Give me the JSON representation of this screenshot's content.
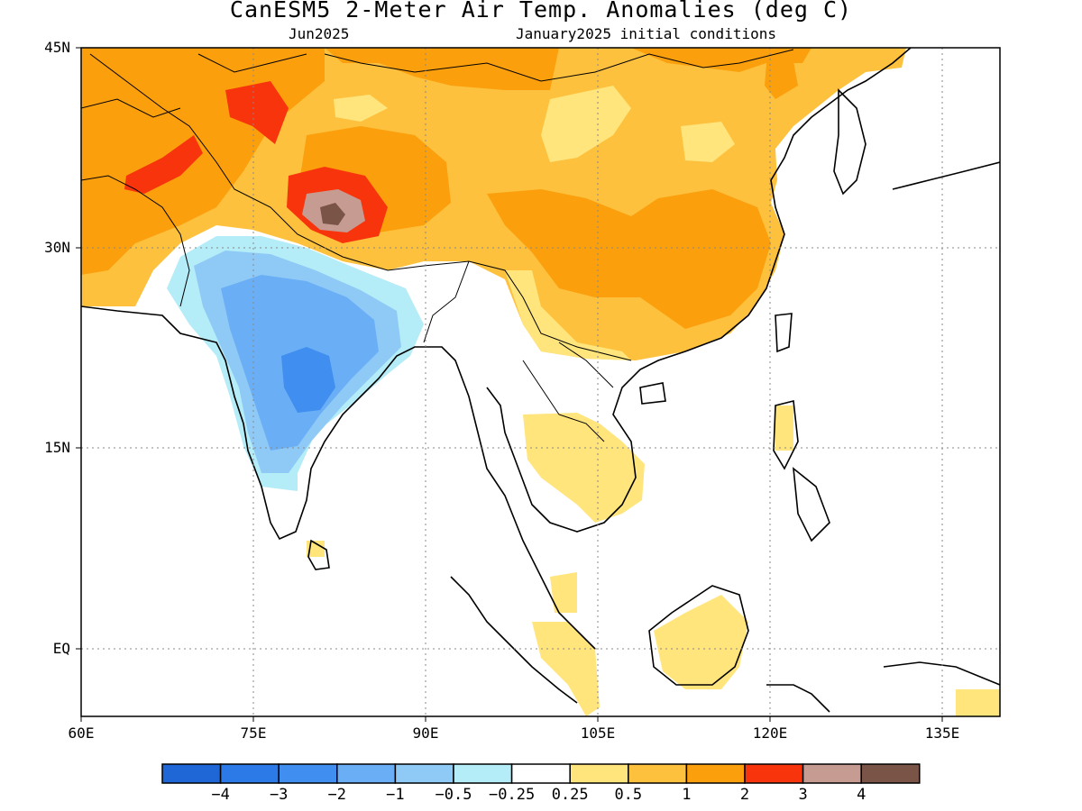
{
  "title": "CanESM5 2-Meter Air Temp. Anomalies (deg C)",
  "subtitle_left": "Jun2025",
  "subtitle_right": "January2025 initial conditions",
  "lat_labels": [
    "45N",
    "30N",
    "15N",
    "EQ"
  ],
  "lon_labels": [
    "60E",
    "75E",
    "90E",
    "105E",
    "120E",
    "135E"
  ],
  "map_extent": {
    "lon": [
      60,
      140
    ],
    "lat": [
      -5,
      45
    ]
  },
  "colorbar": {
    "labels": [
      "-4",
      "-3",
      "-2",
      "-1",
      "-0.5",
      "-0.25",
      "0.25",
      "0.5",
      "1",
      "2",
      "3",
      "4"
    ],
    "colors": [
      "#1f67d6",
      "#2b7ae8",
      "#3f8ef0",
      "#6aaef5",
      "#8fcaf7",
      "#b4ecf7",
      "#ffffff",
      "#ffe57c",
      "#fdc13e",
      "#fc9f0c",
      "#f7340c",
      "#c69c92",
      "#7a5446"
    ]
  },
  "anomaly_regions": [
    {
      "name": "north-band-warm",
      "level": "1 to 2"
    },
    {
      "name": "tibet-hotspot",
      "level": "above 4"
    },
    {
      "name": "india-cool",
      "level": "-2 to -1"
    },
    {
      "name": "indochina-warm",
      "level": "0.25 to 0.5"
    },
    {
      "name": "borneo-warm",
      "level": "0.25 to 0.5"
    }
  ]
}
